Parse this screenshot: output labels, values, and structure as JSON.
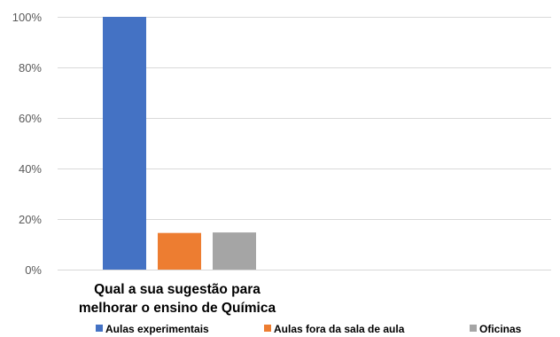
{
  "chart_data": {
    "type": "bar",
    "categories": [
      "Qual a sua sugestão para melhorar o ensino de Química"
    ],
    "category_label_lines": [
      "Qual a sua sugestão para",
      "melhorar o ensino de Química"
    ],
    "series": [
      {
        "name": "Aulas experimentais",
        "values": [
          100
        ],
        "color": "#4472c4"
      },
      {
        "name": "Aulas fora da sala de aula",
        "values": [
          14.5
        ],
        "color": "#ed7d31"
      },
      {
        "name": "Oficinas",
        "values": [
          14.7
        ],
        "color": "#a5a5a5"
      }
    ],
    "ylim": [
      0,
      100
    ],
    "yticks": [
      "0%",
      "20%",
      "40%",
      "60%",
      "80%",
      "100%"
    ],
    "ytick_values": [
      0,
      20,
      40,
      60,
      80,
      100
    ],
    "grid": true,
    "legend_position": "bottom"
  }
}
